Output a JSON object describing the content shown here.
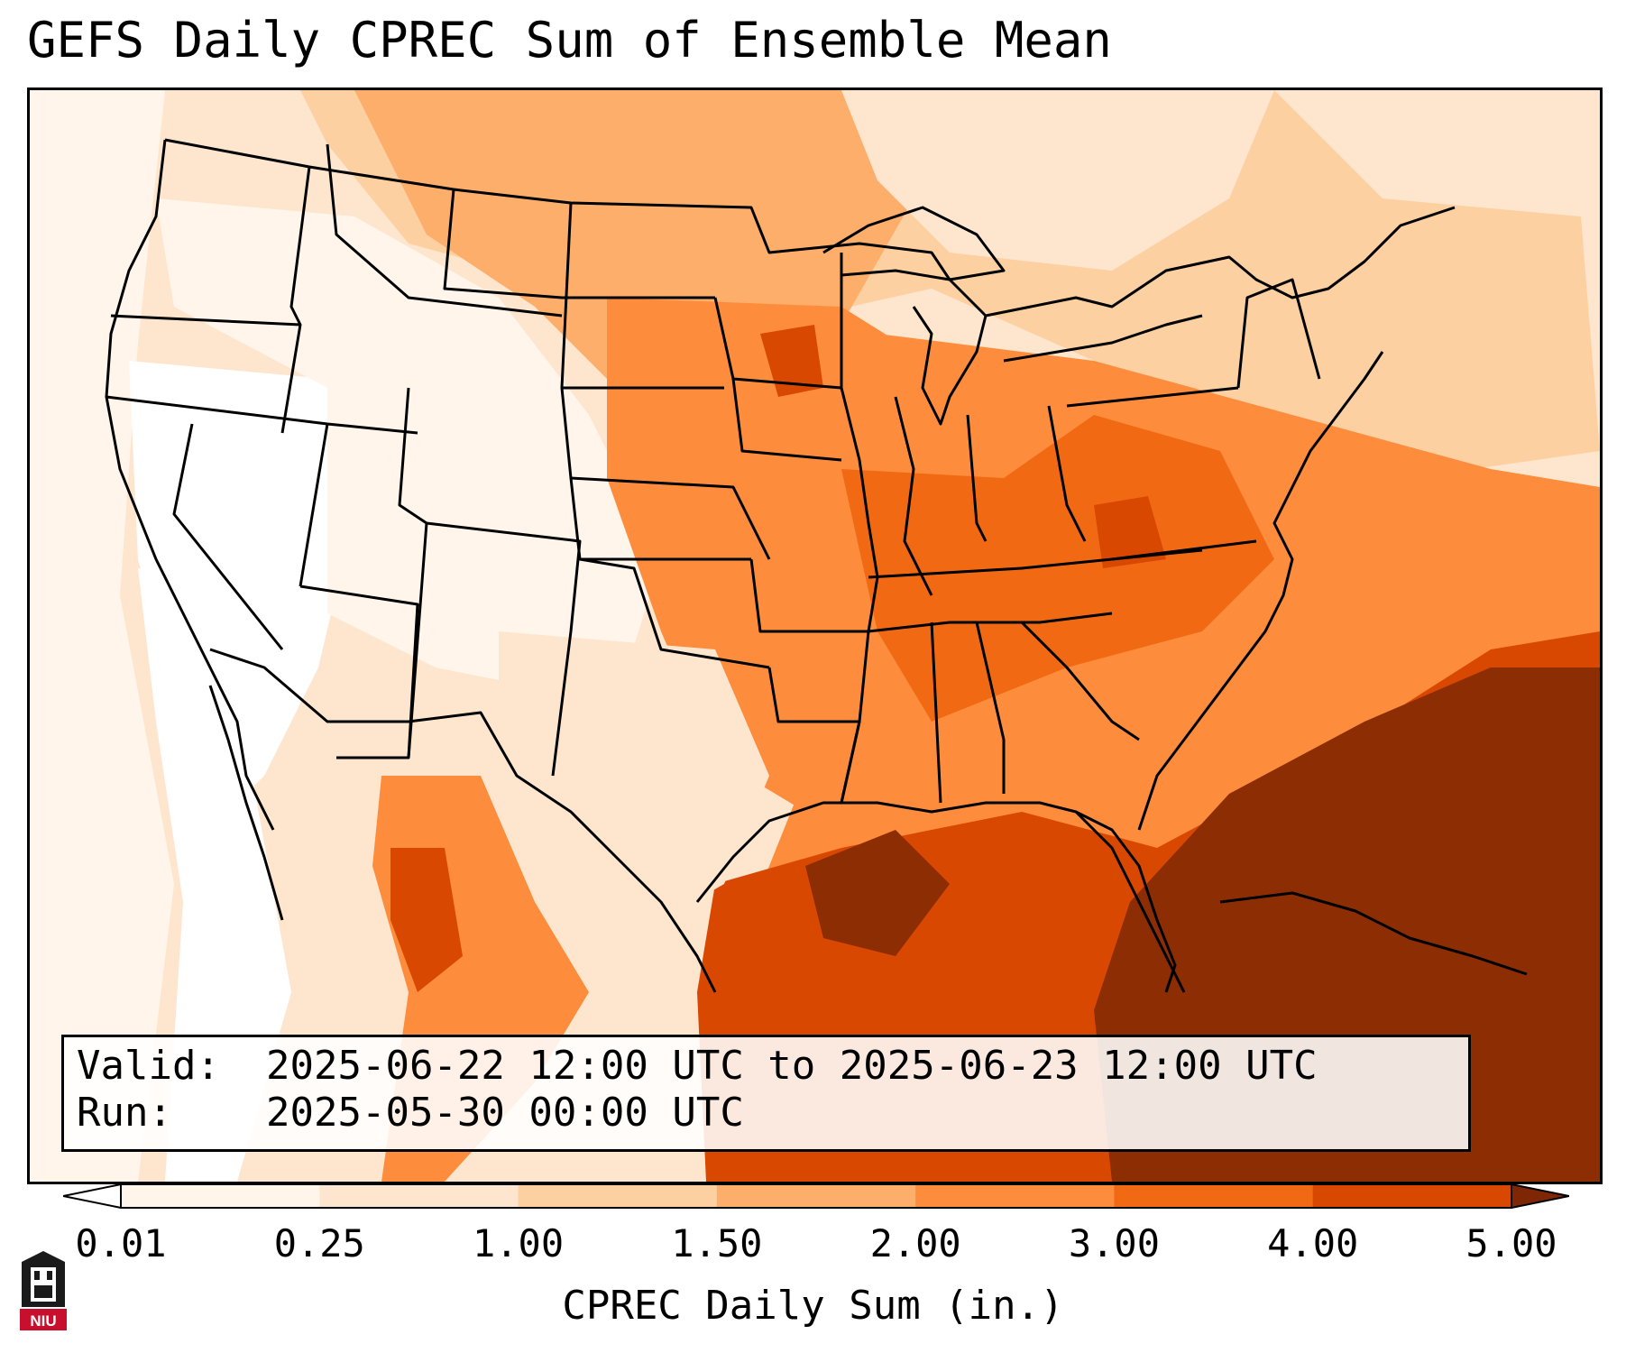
{
  "title": "GEFS Daily CPREC Sum of Ensemble Mean",
  "info": {
    "valid_label": "Valid:",
    "valid_value": "2025-06-22 12:00 UTC to 2025-06-23 12:00 UTC",
    "run_label": "Run:",
    "run_value": "2025-05-30 00:00 UTC"
  },
  "colorbar": {
    "label": "CPREC Daily Sum (in.)",
    "ticks": [
      "0.01",
      "0.25",
      "1.00",
      "1.50",
      "2.00",
      "3.00",
      "4.00",
      "5.00"
    ],
    "colors": [
      "#fff5eb",
      "#fee6ce",
      "#fdd0a2",
      "#fdae6b",
      "#fd8d3c",
      "#f16913",
      "#d94801",
      "#8c2d04"
    ],
    "under_color": "#ffffff",
    "over_color": "#7f2704"
  },
  "logo": {
    "text": "NIU",
    "color": "#c8102e"
  },
  "colors": {
    "background": "#ffffff",
    "border": "#000000"
  }
}
